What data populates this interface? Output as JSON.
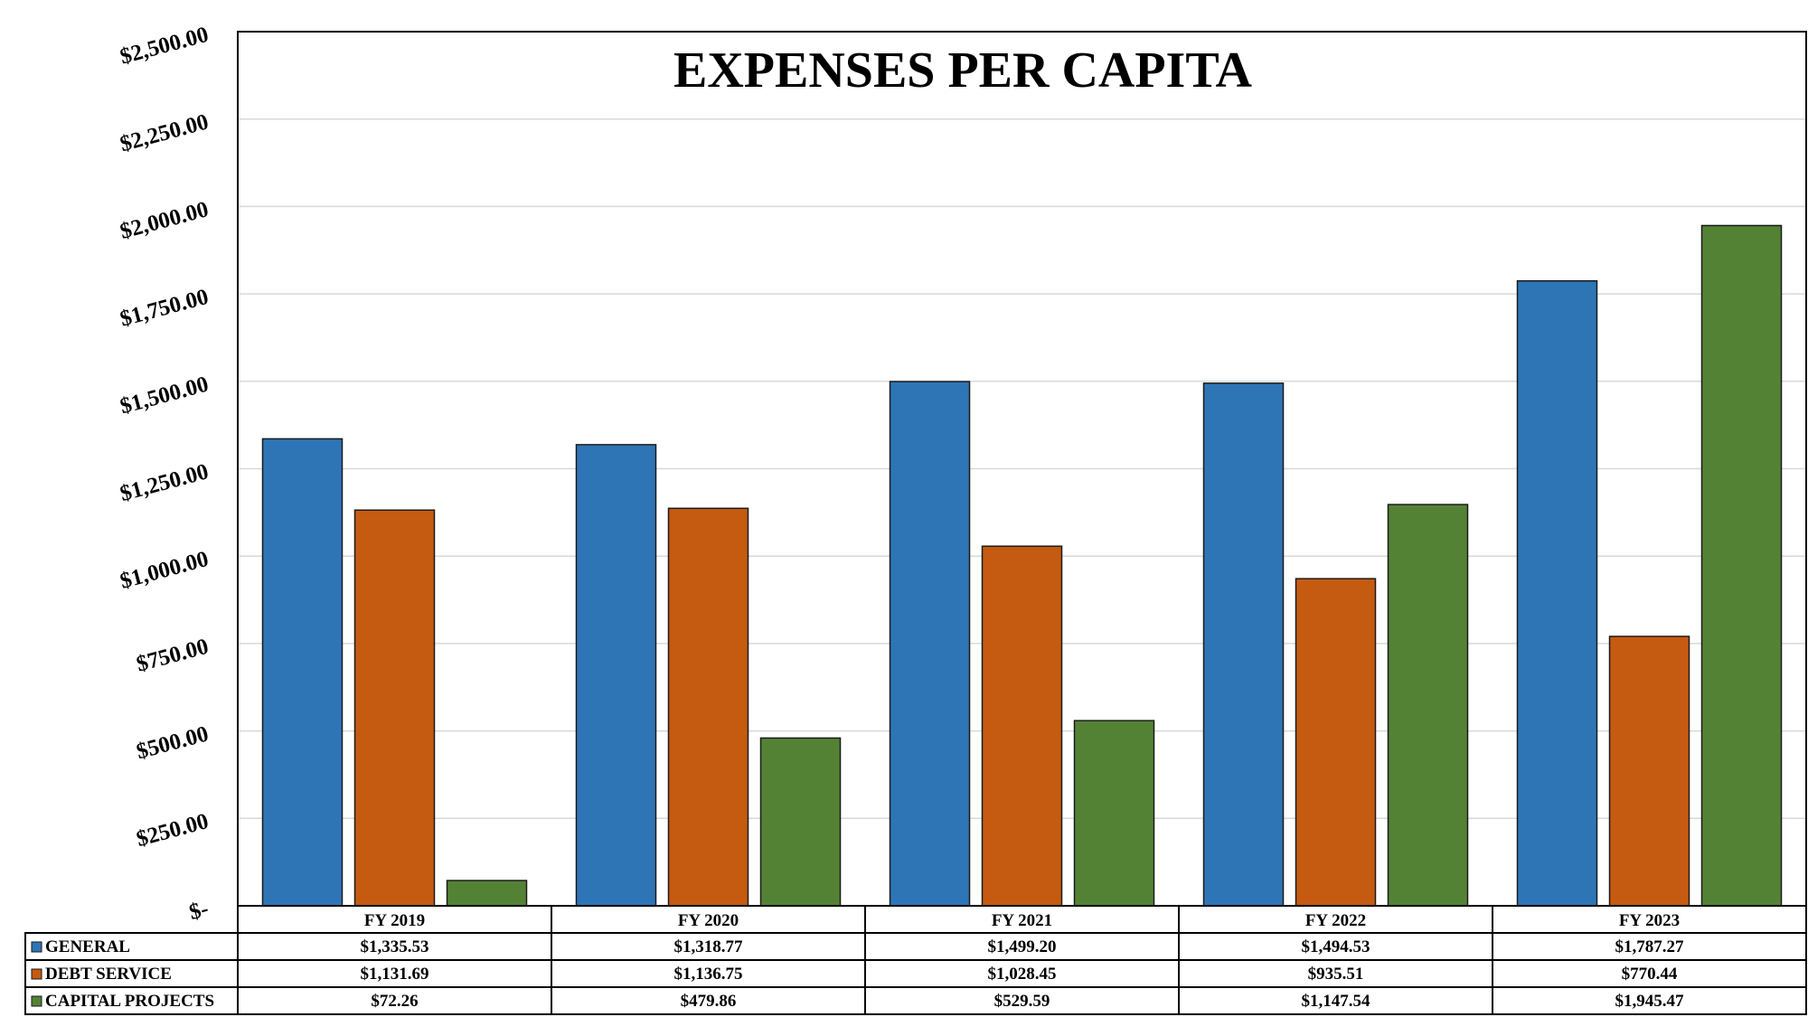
{
  "chart_data": {
    "type": "bar",
    "title": "EXPENSES PER CAPITA",
    "categories": [
      "FY 2019",
      "FY 2020",
      "FY 2021",
      "FY 2022",
      "FY 2023"
    ],
    "ylim": [
      0,
      2500
    ],
    "y_tick_labels": [
      "$-",
      "$250.00",
      "$500.00",
      "$750.00",
      "$1,000.00",
      "$1,250.00",
      "$1,500.00",
      "$1,750.00",
      "$2,000.00",
      "$2,250.00",
      "$2,500.00"
    ],
    "grid": true,
    "legend": "data-table",
    "series": [
      {
        "name": "GENERAL",
        "color": "#2E75B6",
        "values": [
          1335.53,
          1318.77,
          1499.2,
          1494.53,
          1787.27
        ],
        "labels": [
          "$1,335.53",
          "$1,318.77",
          "$1,499.20",
          "$1,494.53",
          "$1,787.27"
        ]
      },
      {
        "name": "DEBT SERVICE",
        "color": "#C55A11",
        "values": [
          1131.69,
          1136.75,
          1028.45,
          935.51,
          770.44
        ],
        "labels": [
          "$1,131.69",
          "$1,136.75",
          "$1,028.45",
          "$935.51",
          "$770.44"
        ]
      },
      {
        "name": "CAPITAL PROJECTS",
        "color": "#548235",
        "values": [
          72.26,
          479.86,
          529.59,
          1147.54,
          1945.47
        ],
        "labels": [
          "$72.26",
          "$479.86",
          "$529.59",
          "$1,147.54",
          "$1,945.47"
        ]
      }
    ]
  }
}
